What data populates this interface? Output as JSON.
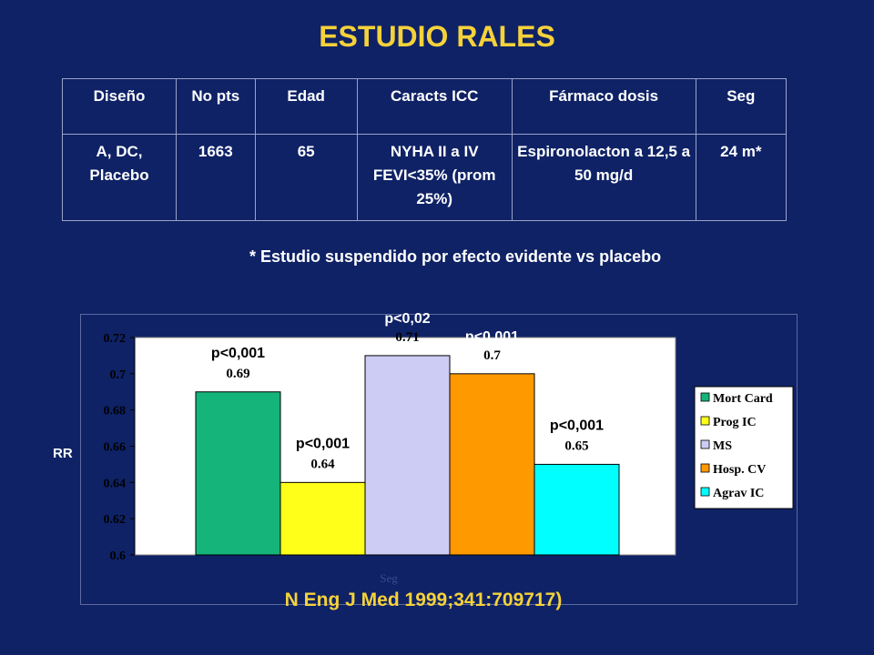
{
  "title": "ESTUDIO RALES",
  "table": {
    "headers": [
      "Diseño",
      "No pts",
      "Edad",
      "Caracts ICC",
      "Fármaco dosis",
      "Seg"
    ],
    "row": [
      "A, DC, Placebo",
      "1663",
      "65",
      "NYHA II a IV FEVI<35% (prom 25%)",
      "Espironolacton a 12,5 a 50 mg/d",
      "24 m*"
    ]
  },
  "note": "*  Estudio suspendido por efecto evidente vs placebo",
  "citation": "N Eng J Med 1999;341:709717)",
  "chart_data": {
    "type": "bar",
    "ylabel": "RR",
    "xlabel": "Seg",
    "ylim": [
      0.6,
      0.72
    ],
    "yticks": [
      "0.6",
      "0.62",
      "0.64",
      "0.66",
      "0.68",
      "0.7",
      "0.72"
    ],
    "grid": false,
    "legend": "right",
    "series": [
      {
        "name": "Mort Card",
        "value": 0.69,
        "label": "0.69",
        "pvalue": "p<0,001",
        "color": "#14b47a"
      },
      {
        "name": "Prog IC",
        "value": 0.64,
        "label": "0.64",
        "pvalue": "p<0,001",
        "color": "#ffff1a"
      },
      {
        "name": "MS",
        "value": 0.71,
        "label": "0.71",
        "pvalue": "p<0,02",
        "color": "#ccccf5"
      },
      {
        "name": "Hosp. CV",
        "value": 0.7,
        "label": "0.7",
        "pvalue": "p<0,001",
        "color": "#ff9900"
      },
      {
        "name": "Agrav IC",
        "value": 0.65,
        "label": "0.65",
        "pvalue": "p<0,001",
        "color": "#00ffff"
      }
    ]
  }
}
